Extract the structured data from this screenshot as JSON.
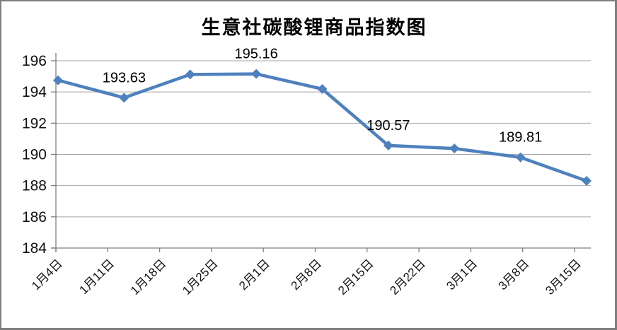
{
  "window": {
    "background": "#FFFFFF",
    "border_color": "#7F7F7F"
  },
  "chart_data": {
    "type": "line",
    "title": "生意社碳酸锂商品指数图",
    "x_labels": [
      "1月4日",
      "1月11日",
      "1月18日",
      "1月25日",
      "2月1日",
      "2月8日",
      "2月15日",
      "2月22日",
      "3月1日",
      "3月8日",
      "3月15日"
    ],
    "values": [
      194.75,
      193.63,
      195.12,
      195.16,
      194.19,
      190.57,
      190.38,
      189.81,
      188.3
    ],
    "data_labels": {
      "1": "193.63",
      "3": "195.16",
      "5": "190.57",
      "7": "189.81"
    },
    "ylim": [
      184,
      196
    ],
    "y_ticks": [
      184,
      186,
      188,
      190,
      192,
      194,
      196
    ],
    "xlabel": "",
    "ylabel": "",
    "grid": "horizontal",
    "legend": "none",
    "marker": "diamond",
    "layout_hints": {
      "x_labels_rotation_deg": -45,
      "x_label_alignment": "on-ticks",
      "points_span_full_axis": true,
      "points_count": 9,
      "tick_count": 11
    },
    "colors": {
      "line": "#4E81BD",
      "grid": "#A6A6A6",
      "axis": "#808080",
      "text": "#000000"
    }
  }
}
